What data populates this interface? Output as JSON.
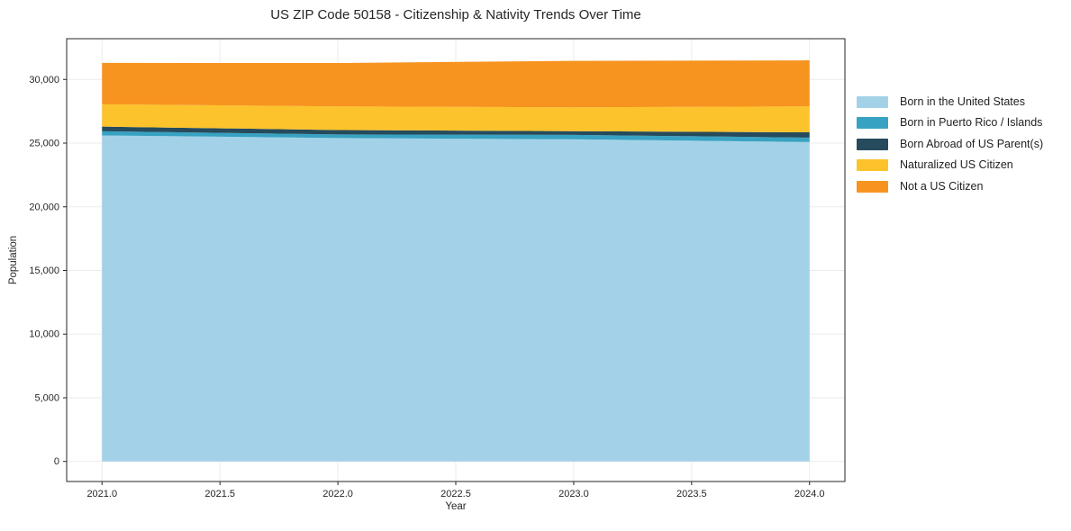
{
  "chart_data": {
    "type": "area",
    "stacked": true,
    "title": "US ZIP Code 50158 - Citizenship & Nativity Trends Over Time",
    "xlabel": "Year",
    "ylabel": "Population",
    "x": [
      2021,
      2022,
      2023,
      2024
    ],
    "series": [
      {
        "name": "Born in the United States",
        "color": "#a3d2e8",
        "values": [
          25600,
          25400,
          25300,
          25080
        ]
      },
      {
        "name": "Born in Puerto Rico / Islands",
        "color": "#38a2c2",
        "values": [
          330,
          280,
          350,
          350
        ]
      },
      {
        "name": "Born Abroad of US Parent(s)",
        "color": "#254b5c",
        "values": [
          370,
          350,
          290,
          420
        ]
      },
      {
        "name": "Naturalized US Citizen",
        "color": "#fdc32c",
        "values": [
          1750,
          1850,
          1870,
          2030
        ]
      },
      {
        "name": "Not a US Citizen",
        "color": "#f7941f",
        "values": [
          3250,
          3410,
          3650,
          3620
        ]
      }
    ],
    "totals": [
      31300,
      31290,
      31460,
      31500
    ],
    "xlim": [
      2020.85,
      2024.15
    ],
    "ylim": [
      -1575,
      33200
    ],
    "x_tick_values": [
      2021.0,
      2021.5,
      2022.0,
      2022.5,
      2023.0,
      2023.5,
      2024.0
    ],
    "x_tick_labels": [
      "2021.0",
      "2021.5",
      "2022.0",
      "2022.5",
      "2023.0",
      "2023.5",
      "2024.0"
    ],
    "y_tick_values": [
      0,
      5000,
      10000,
      15000,
      20000,
      25000,
      30000
    ],
    "y_tick_labels": [
      "0",
      "5,000",
      "10,000",
      "15,000",
      "20,000",
      "25,000",
      "30,000"
    ],
    "grid": true,
    "legend_position": "right-outside"
  },
  "style": {
    "background": "#ffffff",
    "frame_color": "#262626",
    "grid_color": "#ebebf2",
    "text_color": "#262626"
  }
}
